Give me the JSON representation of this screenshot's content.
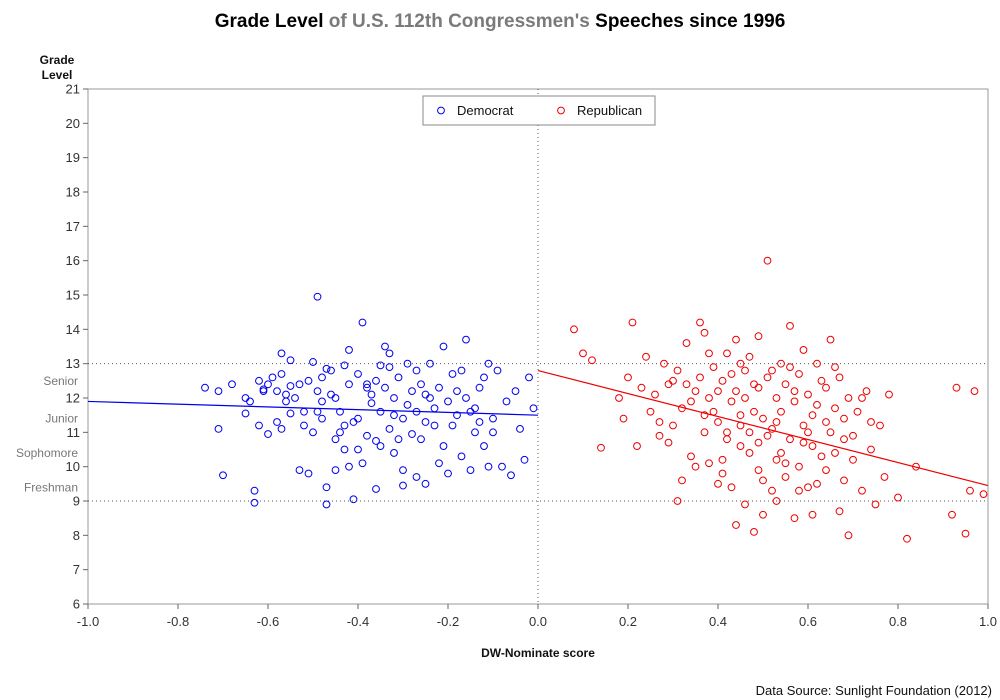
{
  "chart_data": {
    "type": "scatter",
    "title_parts": [
      {
        "text": "Grade Level ",
        "grey": false
      },
      {
        "text": "of U.S. 112th Congressmen's ",
        "grey": true
      },
      {
        "text": "Speeches since 1996",
        "grey": false
      }
    ],
    "xlabel": "DW-Nominate score",
    "ylabel_lines": [
      "Grade",
      "Level"
    ],
    "xlim": [
      -1.0,
      1.0
    ],
    "ylim": [
      6,
      21
    ],
    "x_ticks": [
      "-1.0",
      "-0.8",
      "-0.6",
      "-0.4",
      "-0.2",
      "0.0",
      "0.2",
      "0.4",
      "0.6",
      "0.8",
      "1.0"
    ],
    "y_ticks": [
      "6",
      "7",
      "8",
      "9",
      "10",
      "11",
      "12",
      "13",
      "14",
      "15",
      "16",
      "17",
      "18",
      "19",
      "20",
      "21"
    ],
    "grade_labels": [
      {
        "label": "Senior",
        "y": 12.5
      },
      {
        "label": "Junior",
        "y": 11.4
      },
      {
        "label": "Sophomore",
        "y": 10.4
      },
      {
        "label": "Freshman",
        "y": 9.4
      }
    ],
    "reference_lines": {
      "horizontal": [
        13,
        9
      ],
      "vertical": [
        0
      ]
    },
    "legend": {
      "placement": "top-center"
    },
    "series": [
      {
        "name": "Democrat",
        "color": "#0000ee",
        "marker": "open-circle",
        "points": [
          [
            -0.74,
            12.3
          ],
          [
            -0.71,
            11.1
          ],
          [
            -0.71,
            12.2
          ],
          [
            -0.7,
            9.75
          ],
          [
            -0.68,
            12.4
          ],
          [
            -0.65,
            11.55
          ],
          [
            -0.64,
            11.9
          ],
          [
            -0.63,
            9.3
          ],
          [
            -0.63,
            8.95
          ],
          [
            -0.62,
            11.2
          ],
          [
            -0.61,
            12.2
          ],
          [
            -0.6,
            12.4
          ],
          [
            -0.59,
            12.6
          ],
          [
            -0.58,
            11.3
          ],
          [
            -0.57,
            11.1
          ],
          [
            -0.57,
            13.3
          ],
          [
            -0.56,
            12.1
          ],
          [
            -0.55,
            12.35
          ],
          [
            -0.55,
            11.55
          ],
          [
            -0.54,
            12.0
          ],
          [
            -0.53,
            12.4
          ],
          [
            -0.52,
            11.6
          ],
          [
            -0.51,
            12.5
          ],
          [
            -0.51,
            9.8
          ],
          [
            -0.5,
            11.0
          ],
          [
            -0.49,
            14.95
          ],
          [
            -0.49,
            12.2
          ],
          [
            -0.48,
            11.4
          ],
          [
            -0.48,
            12.6
          ],
          [
            -0.47,
            9.4
          ],
          [
            -0.47,
            8.9
          ],
          [
            -0.46,
            12.8
          ],
          [
            -0.45,
            10.8
          ],
          [
            -0.45,
            12.0
          ],
          [
            -0.44,
            11.6
          ],
          [
            -0.43,
            12.95
          ],
          [
            -0.43,
            11.2
          ],
          [
            -0.42,
            10.0
          ],
          [
            -0.42,
            12.4
          ],
          [
            -0.41,
            9.05
          ],
          [
            -0.4,
            11.4
          ],
          [
            -0.4,
            12.7
          ],
          [
            -0.39,
            14.2
          ],
          [
            -0.38,
            10.9
          ],
          [
            -0.38,
            12.3
          ],
          [
            -0.37,
            11.85
          ],
          [
            -0.36,
            12.5
          ],
          [
            -0.36,
            9.35
          ],
          [
            -0.35,
            12.95
          ],
          [
            -0.35,
            10.6
          ],
          [
            -0.34,
            13.5
          ],
          [
            -0.33,
            13.3
          ],
          [
            -0.33,
            11.1
          ],
          [
            -0.32,
            12.0
          ],
          [
            -0.32,
            10.4
          ],
          [
            -0.31,
            12.6
          ],
          [
            -0.3,
            11.4
          ],
          [
            -0.3,
            9.9
          ],
          [
            -0.29,
            13.0
          ],
          [
            -0.28,
            12.2
          ],
          [
            -0.27,
            11.6
          ],
          [
            -0.27,
            12.8
          ],
          [
            -0.26,
            10.8
          ],
          [
            -0.25,
            12.1
          ],
          [
            -0.25,
            9.5
          ],
          [
            -0.24,
            13.0
          ],
          [
            -0.23,
            11.2
          ],
          [
            -0.22,
            12.3
          ],
          [
            -0.22,
            10.1
          ],
          [
            -0.21,
            13.5
          ],
          [
            -0.2,
            11.9
          ],
          [
            -0.19,
            12.7
          ],
          [
            -0.18,
            11.5
          ],
          [
            -0.17,
            10.3
          ],
          [
            -0.16,
            12.0
          ],
          [
            -0.15,
            9.9
          ],
          [
            -0.14,
            11.0
          ],
          [
            -0.13,
            12.3
          ],
          [
            -0.12,
            10.6
          ],
          [
            -0.11,
            13.0
          ],
          [
            -0.1,
            11.4
          ],
          [
            -0.09,
            12.8
          ],
          [
            -0.08,
            10.0
          ],
          [
            -0.07,
            11.9
          ],
          [
            -0.06,
            9.75
          ],
          [
            -0.05,
            12.2
          ],
          [
            -0.04,
            11.1
          ],
          [
            -0.03,
            10.2
          ],
          [
            -0.02,
            12.6
          ],
          [
            -0.01,
            11.7
          ],
          [
            -0.38,
            12.4
          ],
          [
            -0.45,
            9.9
          ],
          [
            -0.5,
            13.05
          ],
          [
            -0.3,
            9.45
          ],
          [
            -0.55,
            13.1
          ],
          [
            -0.6,
            10.95
          ],
          [
            -0.65,
            12.0
          ],
          [
            -0.36,
            10.75
          ],
          [
            -0.41,
            11.3
          ],
          [
            -0.27,
            9.7
          ],
          [
            -0.24,
            12.0
          ],
          [
            -0.2,
            9.8
          ],
          [
            -0.18,
            12.2
          ],
          [
            -0.16,
            13.7
          ],
          [
            -0.14,
            11.7
          ],
          [
            -0.12,
            12.6
          ],
          [
            -0.1,
            11.0
          ],
          [
            -0.46,
            12.1
          ],
          [
            -0.42,
            13.4
          ],
          [
            -0.53,
            9.9
          ],
          [
            -0.57,
            12.7
          ],
          [
            -0.44,
            11.0
          ],
          [
            -0.39,
            10.1
          ],
          [
            -0.33,
            12.9
          ],
          [
            -0.29,
            11.8
          ],
          [
            -0.23,
            11.7
          ],
          [
            -0.19,
            11.2
          ],
          [
            -0.15,
            11.6
          ],
          [
            -0.13,
            11.3
          ],
          [
            -0.11,
            10.0
          ],
          [
            -0.48,
            11.9
          ],
          [
            -0.35,
            11.6
          ],
          [
            -0.31,
            10.8
          ],
          [
            -0.26,
            12.4
          ],
          [
            -0.21,
            10.6
          ],
          [
            -0.17,
            12.8
          ],
          [
            -0.4,
            10.5
          ],
          [
            -0.34,
            12.3
          ],
          [
            -0.28,
            10.95
          ],
          [
            -0.47,
            12.85
          ],
          [
            -0.52,
            11.2
          ],
          [
            -0.58,
            12.2
          ],
          [
            -0.62,
            12.5
          ],
          [
            -0.37,
            12.1
          ],
          [
            -0.32,
            11.5
          ],
          [
            -0.25,
            11.3
          ],
          [
            -0.43,
            10.5
          ],
          [
            -0.49,
            11.6
          ],
          [
            -0.56,
            11.9
          ],
          [
            -0.61,
            12.25
          ]
        ],
        "trend": {
          "x": [
            -1.0,
            0.0
          ],
          "y": [
            11.9,
            11.5
          ]
        }
      },
      {
        "name": "Republican",
        "color": "#ee0000",
        "marker": "open-circle",
        "points": [
          [
            0.08,
            14.0
          ],
          [
            0.1,
            13.3
          ],
          [
            0.12,
            13.1
          ],
          [
            0.14,
            10.55
          ],
          [
            0.18,
            12.0
          ],
          [
            0.19,
            11.4
          ],
          [
            0.2,
            12.6
          ],
          [
            0.21,
            14.2
          ],
          [
            0.22,
            10.6
          ],
          [
            0.23,
            12.3
          ],
          [
            0.24,
            13.2
          ],
          [
            0.25,
            11.6
          ],
          [
            0.26,
            12.1
          ],
          [
            0.27,
            10.9
          ],
          [
            0.28,
            13.0
          ],
          [
            0.29,
            12.4
          ],
          [
            0.3,
            11.2
          ],
          [
            0.31,
            9.0
          ],
          [
            0.31,
            12.8
          ],
          [
            0.32,
            11.7
          ],
          [
            0.33,
            13.6
          ],
          [
            0.34,
            10.3
          ],
          [
            0.35,
            12.2
          ],
          [
            0.36,
            14.2
          ],
          [
            0.37,
            11.5
          ],
          [
            0.37,
            13.9
          ],
          [
            0.38,
            12.0
          ],
          [
            0.38,
            10.1
          ],
          [
            0.39,
            12.9
          ],
          [
            0.4,
            11.3
          ],
          [
            0.4,
            9.5
          ],
          [
            0.41,
            12.5
          ],
          [
            0.42,
            13.3
          ],
          [
            0.42,
            10.8
          ],
          [
            0.43,
            11.9
          ],
          [
            0.43,
            9.4
          ],
          [
            0.44,
            12.2
          ],
          [
            0.44,
            13.7
          ],
          [
            0.45,
            10.6
          ],
          [
            0.45,
            11.5
          ],
          [
            0.46,
            12.8
          ],
          [
            0.46,
            8.9
          ],
          [
            0.47,
            11.0
          ],
          [
            0.47,
            13.2
          ],
          [
            0.48,
            12.4
          ],
          [
            0.48,
            8.1
          ],
          [
            0.49,
            10.7
          ],
          [
            0.49,
            13.8
          ],
          [
            0.5,
            11.4
          ],
          [
            0.5,
            9.6
          ],
          [
            0.51,
            16.0
          ],
          [
            0.51,
            12.6
          ],
          [
            0.52,
            11.1
          ],
          [
            0.52,
            9.3
          ],
          [
            0.53,
            12.0
          ],
          [
            0.53,
            10.2
          ],
          [
            0.54,
            13.0
          ],
          [
            0.54,
            11.6
          ],
          [
            0.55,
            9.7
          ],
          [
            0.55,
            12.4
          ],
          [
            0.56,
            14.1
          ],
          [
            0.56,
            10.8
          ],
          [
            0.57,
            11.9
          ],
          [
            0.57,
            8.5
          ],
          [
            0.58,
            12.7
          ],
          [
            0.58,
            10.0
          ],
          [
            0.59,
            11.2
          ],
          [
            0.59,
            13.4
          ],
          [
            0.6,
            9.4
          ],
          [
            0.6,
            12.1
          ],
          [
            0.61,
            10.6
          ],
          [
            0.61,
            8.6
          ],
          [
            0.62,
            11.8
          ],
          [
            0.62,
            13.0
          ],
          [
            0.63,
            10.3
          ],
          [
            0.64,
            12.3
          ],
          [
            0.64,
            9.9
          ],
          [
            0.65,
            13.7
          ],
          [
            0.65,
            11.0
          ],
          [
            0.66,
            10.4
          ],
          [
            0.67,
            12.6
          ],
          [
            0.67,
            8.7
          ],
          [
            0.68,
            11.4
          ],
          [
            0.68,
            9.6
          ],
          [
            0.69,
            12.0
          ],
          [
            0.69,
            8.0
          ],
          [
            0.7,
            10.9
          ],
          [
            0.71,
            11.6
          ],
          [
            0.72,
            9.3
          ],
          [
            0.73,
            12.2
          ],
          [
            0.74,
            10.5
          ],
          [
            0.75,
            8.9
          ],
          [
            0.76,
            11.2
          ],
          [
            0.78,
            12.1
          ],
          [
            0.8,
            9.1
          ],
          [
            0.82,
            7.9
          ],
          [
            0.84,
            10.0
          ],
          [
            0.92,
            8.6
          ],
          [
            0.93,
            12.3
          ],
          [
            0.95,
            8.05
          ],
          [
            0.96,
            9.3
          ],
          [
            0.97,
            12.2
          ],
          [
            0.99,
            9.2
          ],
          [
            0.34,
            11.9
          ],
          [
            0.36,
            12.6
          ],
          [
            0.39,
            11.6
          ],
          [
            0.41,
            10.2
          ],
          [
            0.43,
            12.7
          ],
          [
            0.45,
            11.2
          ],
          [
            0.47,
            10.4
          ],
          [
            0.49,
            12.3
          ],
          [
            0.51,
            10.9
          ],
          [
            0.53,
            11.3
          ],
          [
            0.55,
            10.1
          ],
          [
            0.57,
            12.2
          ],
          [
            0.59,
            10.7
          ],
          [
            0.61,
            11.5
          ],
          [
            0.63,
            12.5
          ],
          [
            0.66,
            11.7
          ],
          [
            0.7,
            10.2
          ],
          [
            0.27,
            11.3
          ],
          [
            0.29,
            10.7
          ],
          [
            0.33,
            12.4
          ],
          [
            0.35,
            10.0
          ],
          [
            0.38,
            13.3
          ],
          [
            0.4,
            12.2
          ],
          [
            0.42,
            11.0
          ],
          [
            0.44,
            8.3
          ],
          [
            0.46,
            12.0
          ],
          [
            0.48,
            11.6
          ],
          [
            0.5,
            8.6
          ],
          [
            0.52,
            12.8
          ],
          [
            0.54,
            10.4
          ],
          [
            0.56,
            12.9
          ],
          [
            0.58,
            9.3
          ],
          [
            0.6,
            11.0
          ],
          [
            0.62,
            9.5
          ],
          [
            0.64,
            11.3
          ],
          [
            0.66,
            12.9
          ],
          [
            0.68,
            10.8
          ],
          [
            0.72,
            12.0
          ],
          [
            0.74,
            11.3
          ],
          [
            0.77,
            9.7
          ],
          [
            0.3,
            12.5
          ],
          [
            0.32,
            9.6
          ],
          [
            0.37,
            11.0
          ],
          [
            0.41,
            9.8
          ],
          [
            0.45,
            13.0
          ],
          [
            0.49,
            9.9
          ],
          [
            0.53,
            9.0
          ]
        ],
        "trend": {
          "x": [
            0.0,
            1.0
          ],
          "y": [
            12.8,
            9.45
          ]
        }
      }
    ]
  },
  "source_text": "Data Source: Sunlight Foundation (2012)"
}
